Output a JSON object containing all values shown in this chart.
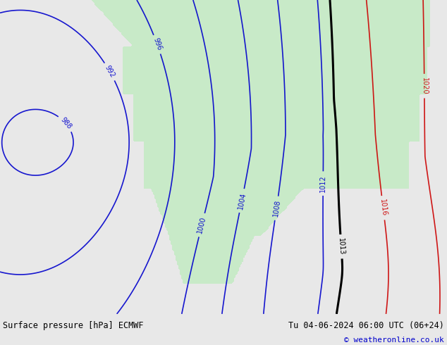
{
  "title_left": "Surface pressure [hPa] ECMWF",
  "title_right": "Tu 04-06-2024 06:00 UTC (06+24)",
  "copyright": "© weatheronline.co.uk",
  "bg_color": "#e8e8e8",
  "land_color": "#c8eac8",
  "ocean_color": "#e8e8e8",
  "blue_line_color": "#0000cc",
  "red_line_color": "#cc0000",
  "black_line_color": "#000000",
  "bottom_text_color": "#000000",
  "copyright_color": "#0000cc"
}
